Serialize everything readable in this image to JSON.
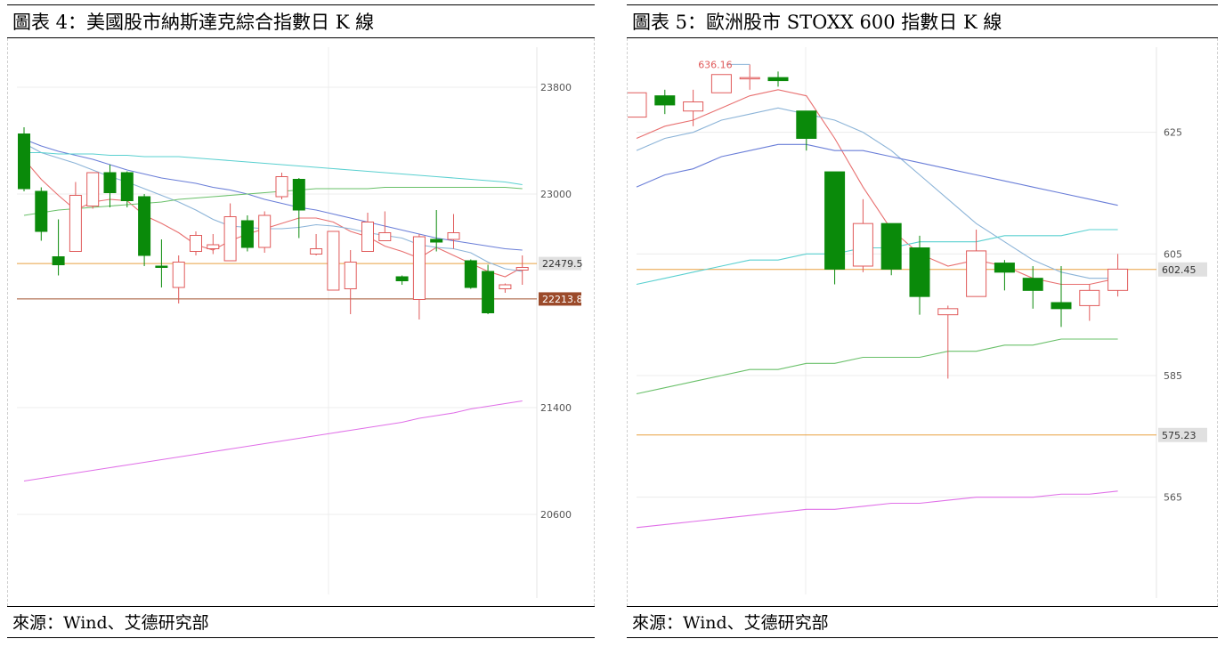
{
  "charts": [
    {
      "title": "圖表 4：美國股市納斯達克綜合指數日 K 線",
      "source": "來源：Wind、艾德研究部",
      "y_ticks": [
        "23800",
        "23000",
        "21400",
        "20600"
      ],
      "price_tags": [
        {
          "label": "22479.5",
          "value": 22479.5,
          "color": "#e8a040",
          "fill": "#e0e0e0",
          "text_color": "#333333"
        },
        {
          "label": "22213.8",
          "value": 22213.8,
          "color": "#a0522d",
          "fill": "#9b4a2a",
          "text_color": "#ffffff"
        }
      ]
    },
    {
      "title": "圖表 5：歐洲股市 STOXX 600 指數日 K 線",
      "source": "來源：Wind、艾德研究部",
      "y_ticks": [
        "625",
        "605",
        "585",
        "565"
      ],
      "price_tags": [
        {
          "label": "602.45",
          "value": 602.45,
          "color": "#e8a040",
          "fill": "#e0e0e0",
          "text_color": "#333333"
        },
        {
          "label": "575.23",
          "value": 575.23,
          "color": "#e8a040",
          "fill": "#e0e0e0",
          "text_color": "#333333"
        }
      ],
      "annotation": {
        "label": "636.16",
        "value": 636.16,
        "candle_index": 4
      }
    }
  ],
  "chart_data": [
    {
      "type": "candlestick",
      "title": "",
      "ylim": [
        20000,
        24100
      ],
      "y_ticks": [
        23800,
        23000,
        21400,
        20600
      ],
      "up_color": "#e05a5a",
      "down_color": "#0a8a0a",
      "candles": [
        {
          "o": 23450,
          "h": 23500,
          "l": 23020,
          "c": 23040
        },
        {
          "o": 23020,
          "h": 23050,
          "l": 22650,
          "c": 22720
        },
        {
          "o": 22530,
          "h": 22810,
          "l": 22390,
          "c": 22470
        },
        {
          "o": 22570,
          "h": 23090,
          "l": 22570,
          "c": 22990
        },
        {
          "o": 22910,
          "h": 23160,
          "l": 22890,
          "c": 23160
        },
        {
          "o": 23160,
          "h": 23220,
          "l": 22900,
          "c": 23010
        },
        {
          "o": 23160,
          "h": 23170,
          "l": 22900,
          "c": 22950
        },
        {
          "o": 22980,
          "h": 23000,
          "l": 22460,
          "c": 22540
        },
        {
          "o": 22460,
          "h": 22660,
          "l": 22300,
          "c": 22450
        },
        {
          "o": 22300,
          "h": 22540,
          "l": 22180,
          "c": 22490
        },
        {
          "o": 22570,
          "h": 22720,
          "l": 22540,
          "c": 22690
        },
        {
          "o": 22590,
          "h": 22700,
          "l": 22550,
          "c": 22620
        },
        {
          "o": 22500,
          "h": 22930,
          "l": 22500,
          "c": 22830
        },
        {
          "o": 22800,
          "h": 22840,
          "l": 22570,
          "c": 22600
        },
        {
          "o": 22600,
          "h": 22870,
          "l": 22560,
          "c": 22840
        },
        {
          "o": 22980,
          "h": 23160,
          "l": 22960,
          "c": 23130
        },
        {
          "o": 23110,
          "h": 23120,
          "l": 22670,
          "c": 22880
        },
        {
          "o": 22550,
          "h": 22700,
          "l": 22540,
          "c": 22590
        },
        {
          "o": 22280,
          "h": 22720,
          "l": 22280,
          "c": 22720
        },
        {
          "o": 22290,
          "h": 22580,
          "l": 22100,
          "c": 22490
        },
        {
          "o": 22570,
          "h": 22860,
          "l": 22570,
          "c": 22790
        },
        {
          "o": 22650,
          "h": 22870,
          "l": 22650,
          "c": 22710
        },
        {
          "o": 22380,
          "h": 22390,
          "l": 22320,
          "c": 22350
        },
        {
          "o": 22210,
          "h": 22700,
          "l": 22060,
          "c": 22680
        },
        {
          "o": 22660,
          "h": 22880,
          "l": 22570,
          "c": 22640
        },
        {
          "o": 22660,
          "h": 22850,
          "l": 22590,
          "c": 22710
        },
        {
          "o": 22500,
          "h": 22510,
          "l": 22290,
          "c": 22300
        },
        {
          "o": 22420,
          "h": 22470,
          "l": 22100,
          "c": 22110
        },
        {
          "o": 22290,
          "h": 22330,
          "l": 22260,
          "c": 22320
        },
        {
          "o": 22430,
          "h": 22540,
          "l": 22320,
          "c": 22450
        }
      ],
      "lines": [
        {
          "color": "#e87070",
          "values": [
            23260,
            23110,
            22990,
            22880,
            22940,
            22960,
            22950,
            22840,
            22780,
            22710,
            22620,
            22580,
            22650,
            22700,
            22740,
            22780,
            22820,
            22820,
            22790,
            22720,
            22680,
            22610,
            22570,
            22520,
            22600,
            22540,
            22480,
            22420,
            22380,
            22450
          ]
        },
        {
          "color": "#8cb4d8",
          "values": [
            23380,
            23310,
            23270,
            23230,
            23180,
            23130,
            23090,
            23040,
            22990,
            22940,
            22880,
            22810,
            22760,
            22750,
            22740,
            22740,
            22750,
            22770,
            22760,
            22740,
            22710,
            22690,
            22670,
            22620,
            22600,
            22590,
            22560,
            22490,
            22440,
            22420
          ]
        },
        {
          "color": "#6a7ed8",
          "values": [
            23410,
            23360,
            23320,
            23290,
            23260,
            23220,
            23180,
            23150,
            23120,
            23100,
            23080,
            23050,
            23030,
            23000,
            22960,
            22930,
            22900,
            22880,
            22850,
            22820,
            22790,
            22760,
            22730,
            22700,
            22670,
            22650,
            22630,
            22610,
            22590,
            22580
          ]
        },
        {
          "color": "#5ad0d0",
          "values": [
            23310,
            23310,
            23300,
            23300,
            23300,
            23290,
            23290,
            23280,
            23280,
            23280,
            23270,
            23260,
            23250,
            23240,
            23230,
            23220,
            23210,
            23200,
            23190,
            23180,
            23170,
            23160,
            23150,
            23140,
            23130,
            23120,
            23110,
            23100,
            23090,
            23070
          ]
        },
        {
          "color": "#6ac06a",
          "values": [
            22840,
            22860,
            22880,
            22890,
            22900,
            22910,
            22920,
            22930,
            22940,
            22960,
            22970,
            22980,
            22990,
            23000,
            23010,
            23020,
            23030,
            23040,
            23040,
            23040,
            23040,
            23050,
            23050,
            23050,
            23050,
            23050,
            23050,
            23050,
            23050,
            23040
          ]
        },
        {
          "color": "#e070e8",
          "values": [
            20850,
            20870,
            20890,
            20910,
            20930,
            20950,
            20970,
            20990,
            21010,
            21030,
            21050,
            21070,
            21090,
            21110,
            21130,
            21150,
            21170,
            21190,
            21210,
            21230,
            21250,
            21270,
            21290,
            21320,
            21340,
            21360,
            21390,
            21410,
            21430,
            21450
          ]
        }
      ]
    },
    {
      "type": "candlestick",
      "title": "",
      "ylim": [
        549,
        639
      ],
      "y_ticks": [
        625,
        605,
        585,
        565
      ],
      "up_color": "#e05a5a",
      "down_color": "#0a8a0a",
      "candles": [
        {
          "o": 627.5,
          "h": 631.5,
          "l": 627.5,
          "c": 631.5
        },
        {
          "o": 631,
          "h": 632,
          "l": 628,
          "c": 629.5
        },
        {
          "o": 628.5,
          "h": 632,
          "l": 626,
          "c": 630
        },
        {
          "o": 631.5,
          "h": 634.5,
          "l": 631.5,
          "c": 634.5
        },
        {
          "o": 634,
          "h": 636.16,
          "l": 632,
          "c": 634
        },
        {
          "o": 634,
          "h": 635,
          "l": 632.5,
          "c": 633.5
        },
        {
          "o": 628.5,
          "h": 628.5,
          "l": 622,
          "c": 624
        },
        {
          "o": 618.5,
          "h": 618.5,
          "l": 600,
          "c": 602.5
        },
        {
          "o": 603,
          "h": 614,
          "l": 602,
          "c": 610
        },
        {
          "o": 610,
          "h": 610,
          "l": 601.5,
          "c": 602.5
        },
        {
          "o": 606,
          "h": 608,
          "l": 595,
          "c": 598
        },
        {
          "o": 595,
          "h": 596.5,
          "l": 584.5,
          "c": 596
        },
        {
          "o": 598,
          "h": 609,
          "l": 598,
          "c": 605.5
        },
        {
          "o": 603.5,
          "h": 604,
          "l": 599,
          "c": 602
        },
        {
          "o": 601,
          "h": 603,
          "l": 596,
          "c": 599
        },
        {
          "o": 597,
          "h": 603,
          "l": 593,
          "c": 596
        },
        {
          "o": 596.5,
          "h": 600,
          "l": 594,
          "c": 599
        },
        {
          "o": 599,
          "h": 605,
          "l": 598,
          "c": 602.5
        }
      ],
      "lines": [
        {
          "color": "#e87070",
          "values": [
            624,
            626,
            627,
            629,
            631,
            632,
            631,
            624,
            616,
            609,
            605,
            603,
            604,
            603,
            601,
            600,
            600,
            601
          ]
        },
        {
          "color": "#8cb4d8",
          "values": [
            622,
            624,
            625,
            627,
            628,
            629,
            628,
            627,
            625,
            622,
            618,
            614,
            610,
            607,
            604,
            602,
            601,
            601
          ]
        },
        {
          "color": "#6a7ed8",
          "values": [
            616,
            618,
            619,
            621,
            622,
            623,
            623,
            622,
            622,
            621,
            620,
            619,
            618,
            617,
            616,
            615,
            614,
            613
          ]
        },
        {
          "color": "#5ad0d0",
          "values": [
            600,
            601,
            602,
            603,
            604,
            604,
            605,
            605,
            606,
            606,
            607,
            607,
            607,
            608,
            608,
            608,
            609,
            609
          ]
        },
        {
          "color": "#6ac06a",
          "values": [
            582,
            583,
            584,
            585,
            586,
            586,
            587,
            587,
            588,
            588,
            588,
            589,
            589,
            590,
            590,
            591,
            591,
            591
          ]
        },
        {
          "color": "#e070e8",
          "values": [
            560,
            560.5,
            561,
            561.5,
            562,
            562.5,
            563,
            563,
            563.5,
            564,
            564,
            564.5,
            565,
            565,
            565,
            565.5,
            565.5,
            566
          ]
        }
      ]
    }
  ]
}
